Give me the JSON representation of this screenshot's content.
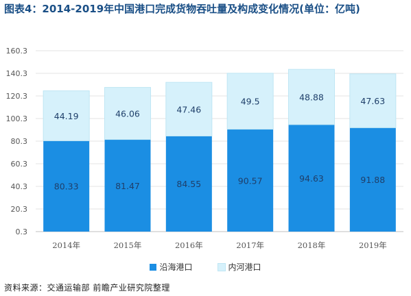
{
  "title": "图表4：2014-2019年中国港口完成货物吞吐量及构成变化情况(单位：亿吨)",
  "source": "资料来源：交通运输部 前瞻产业研究院整理",
  "colors": {
    "coastal": "#1b8ee3",
    "inland": "#d6f1fb",
    "inland_top": "#bfe6f4",
    "grid": "#e3e3e3",
    "axis": "#bfbfbf"
  },
  "chart_data": {
    "type": "bar",
    "stacked": true,
    "categories": [
      "2014年",
      "2015年",
      "2016年",
      "2017年",
      "2018年",
      "2019年"
    ],
    "series": [
      {
        "name": "沿海港口",
        "values": [
          80.33,
          81.47,
          84.55,
          90.57,
          94.63,
          91.88
        ],
        "labels": [
          "80.33",
          "81.47",
          "84.55",
          "90.57",
          "94.63",
          "91.88"
        ]
      },
      {
        "name": "内河港口",
        "values": [
          44.19,
          46.06,
          47.46,
          49.5,
          48.88,
          47.63
        ],
        "labels": [
          "44.19",
          "46.06",
          "47.46",
          "49.5",
          "48.88",
          "47.63"
        ]
      }
    ],
    "y_ticks": [
      "0.3",
      "20.3",
      "40.3",
      "60.3",
      "80.3",
      "100.3",
      "120.3",
      "140.3",
      "160.3"
    ],
    "ylim": [
      0.3,
      160.3
    ],
    "grid": true,
    "legend_position": "bottom"
  }
}
